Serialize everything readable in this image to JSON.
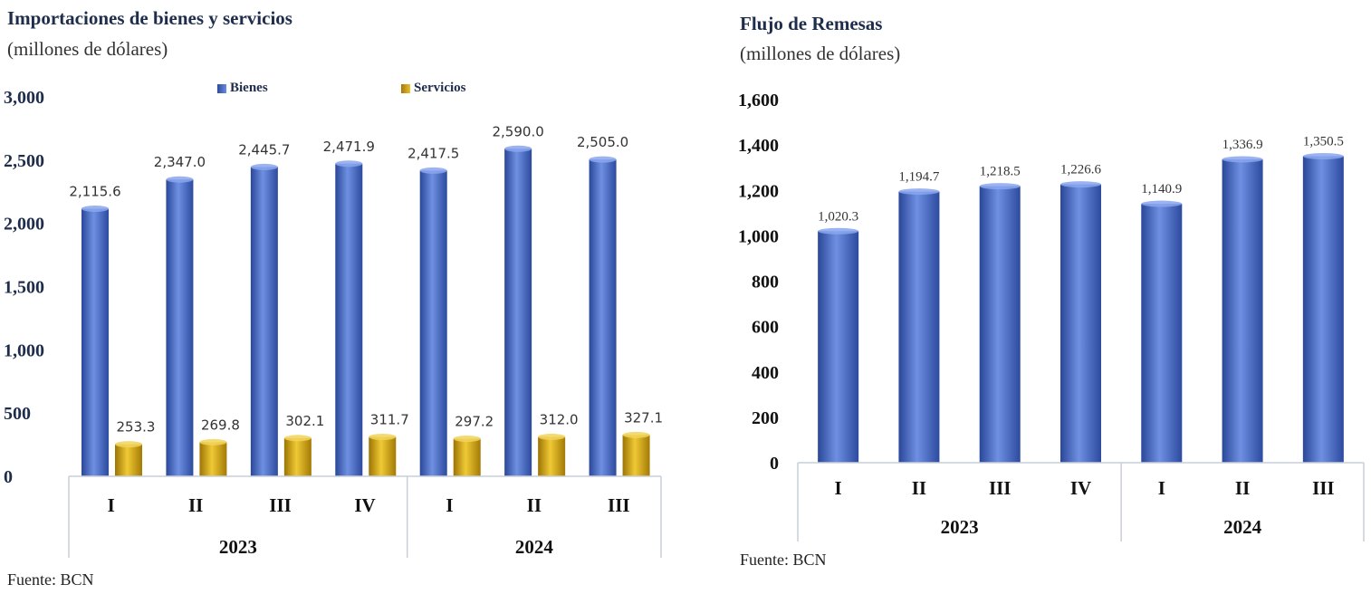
{
  "chart_data": [
    {
      "type": "bar",
      "title": "Importaciones de bienes y servicios",
      "subtitle": "(millones de dólares)",
      "categories": [
        "I",
        "II",
        "III",
        "IV",
        "I",
        "II",
        "III"
      ],
      "groups": [
        {
          "label": "2023",
          "count": 4
        },
        {
          "label": "2024",
          "count": 3
        }
      ],
      "series": [
        {
          "name": "Bienes",
          "values": [
            2115.6,
            2347.0,
            2445.7,
            2471.9,
            2417.5,
            2590.0,
            2505.0
          ],
          "labels": [
            "2,115.6",
            "2,347.0",
            "2,445.7",
            "2,471.9",
            "2,417.5",
            "2,590.0",
            "2,505.0"
          ]
        },
        {
          "name": "Servicios",
          "values": [
            253.3,
            269.8,
            302.1,
            311.7,
            297.2,
            312.0,
            327.1
          ],
          "labels": [
            "253.3",
            "269.8",
            "302.1",
            "311.7",
            "297.2",
            "312.0",
            "327.1"
          ]
        }
      ],
      "yticks": [
        "0",
        "500",
        "1,000",
        "1,500",
        "2,000",
        "2,500",
        "3,000"
      ],
      "ylim": [
        0,
        3000
      ],
      "legend_position": "top",
      "grid": false,
      "colors": {
        "Bienes": "#4a6fd0",
        "Servicios": "#d4a417"
      },
      "source": "Fuente: BCN"
    },
    {
      "type": "bar",
      "title": "Flujo de Remesas",
      "subtitle": "(millones de dólares)",
      "categories": [
        "I",
        "II",
        "III",
        "IV",
        "I",
        "II",
        "III"
      ],
      "groups": [
        {
          "label": "2023",
          "count": 4
        },
        {
          "label": "2024",
          "count": 3
        }
      ],
      "series": [
        {
          "values": [
            1020.3,
            1194.7,
            1218.5,
            1226.6,
            1140.9,
            1336.9,
            1350.5
          ],
          "labels": [
            "1,020.3",
            "1,194.7",
            "1,218.5",
            "1,226.6",
            "1,140.9",
            "1,336.9",
            "1,350.5"
          ]
        }
      ],
      "yticks": [
        "0",
        "200",
        "400",
        "600",
        "800",
        "1,000",
        "1,200",
        "1,400",
        "1,600"
      ],
      "ylim": [
        0,
        1600
      ],
      "grid": false,
      "colors": {
        "bars": "#4a6fd0"
      },
      "source": "Fuente: BCN"
    }
  ]
}
